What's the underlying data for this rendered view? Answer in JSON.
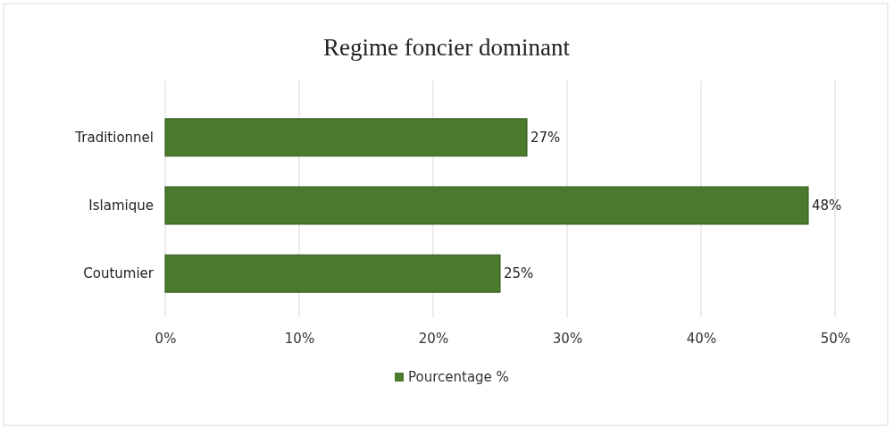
{
  "chart_data": {
    "type": "bar",
    "orientation": "horizontal",
    "title": "Regime foncier dominant",
    "categories": [
      "Traditionnel",
      "Islamique",
      "Coutumier"
    ],
    "series": [
      {
        "name": "Pourcentage %",
        "color": "#4b7a2c",
        "values": [
          27,
          48,
          25
        ],
        "value_labels": [
          "27%",
          "48%",
          "25%"
        ]
      }
    ],
    "xlim": [
      0,
      50
    ],
    "xticks": [
      {
        "value": 0,
        "label": "0%"
      },
      {
        "value": 10,
        "label": "10%"
      },
      {
        "value": 20,
        "label": "20%"
      },
      {
        "value": 30,
        "label": "30%"
      },
      {
        "value": 40,
        "label": "40%"
      },
      {
        "value": 50,
        "label": "50%"
      }
    ],
    "grid": "x",
    "legend": "bottom"
  }
}
